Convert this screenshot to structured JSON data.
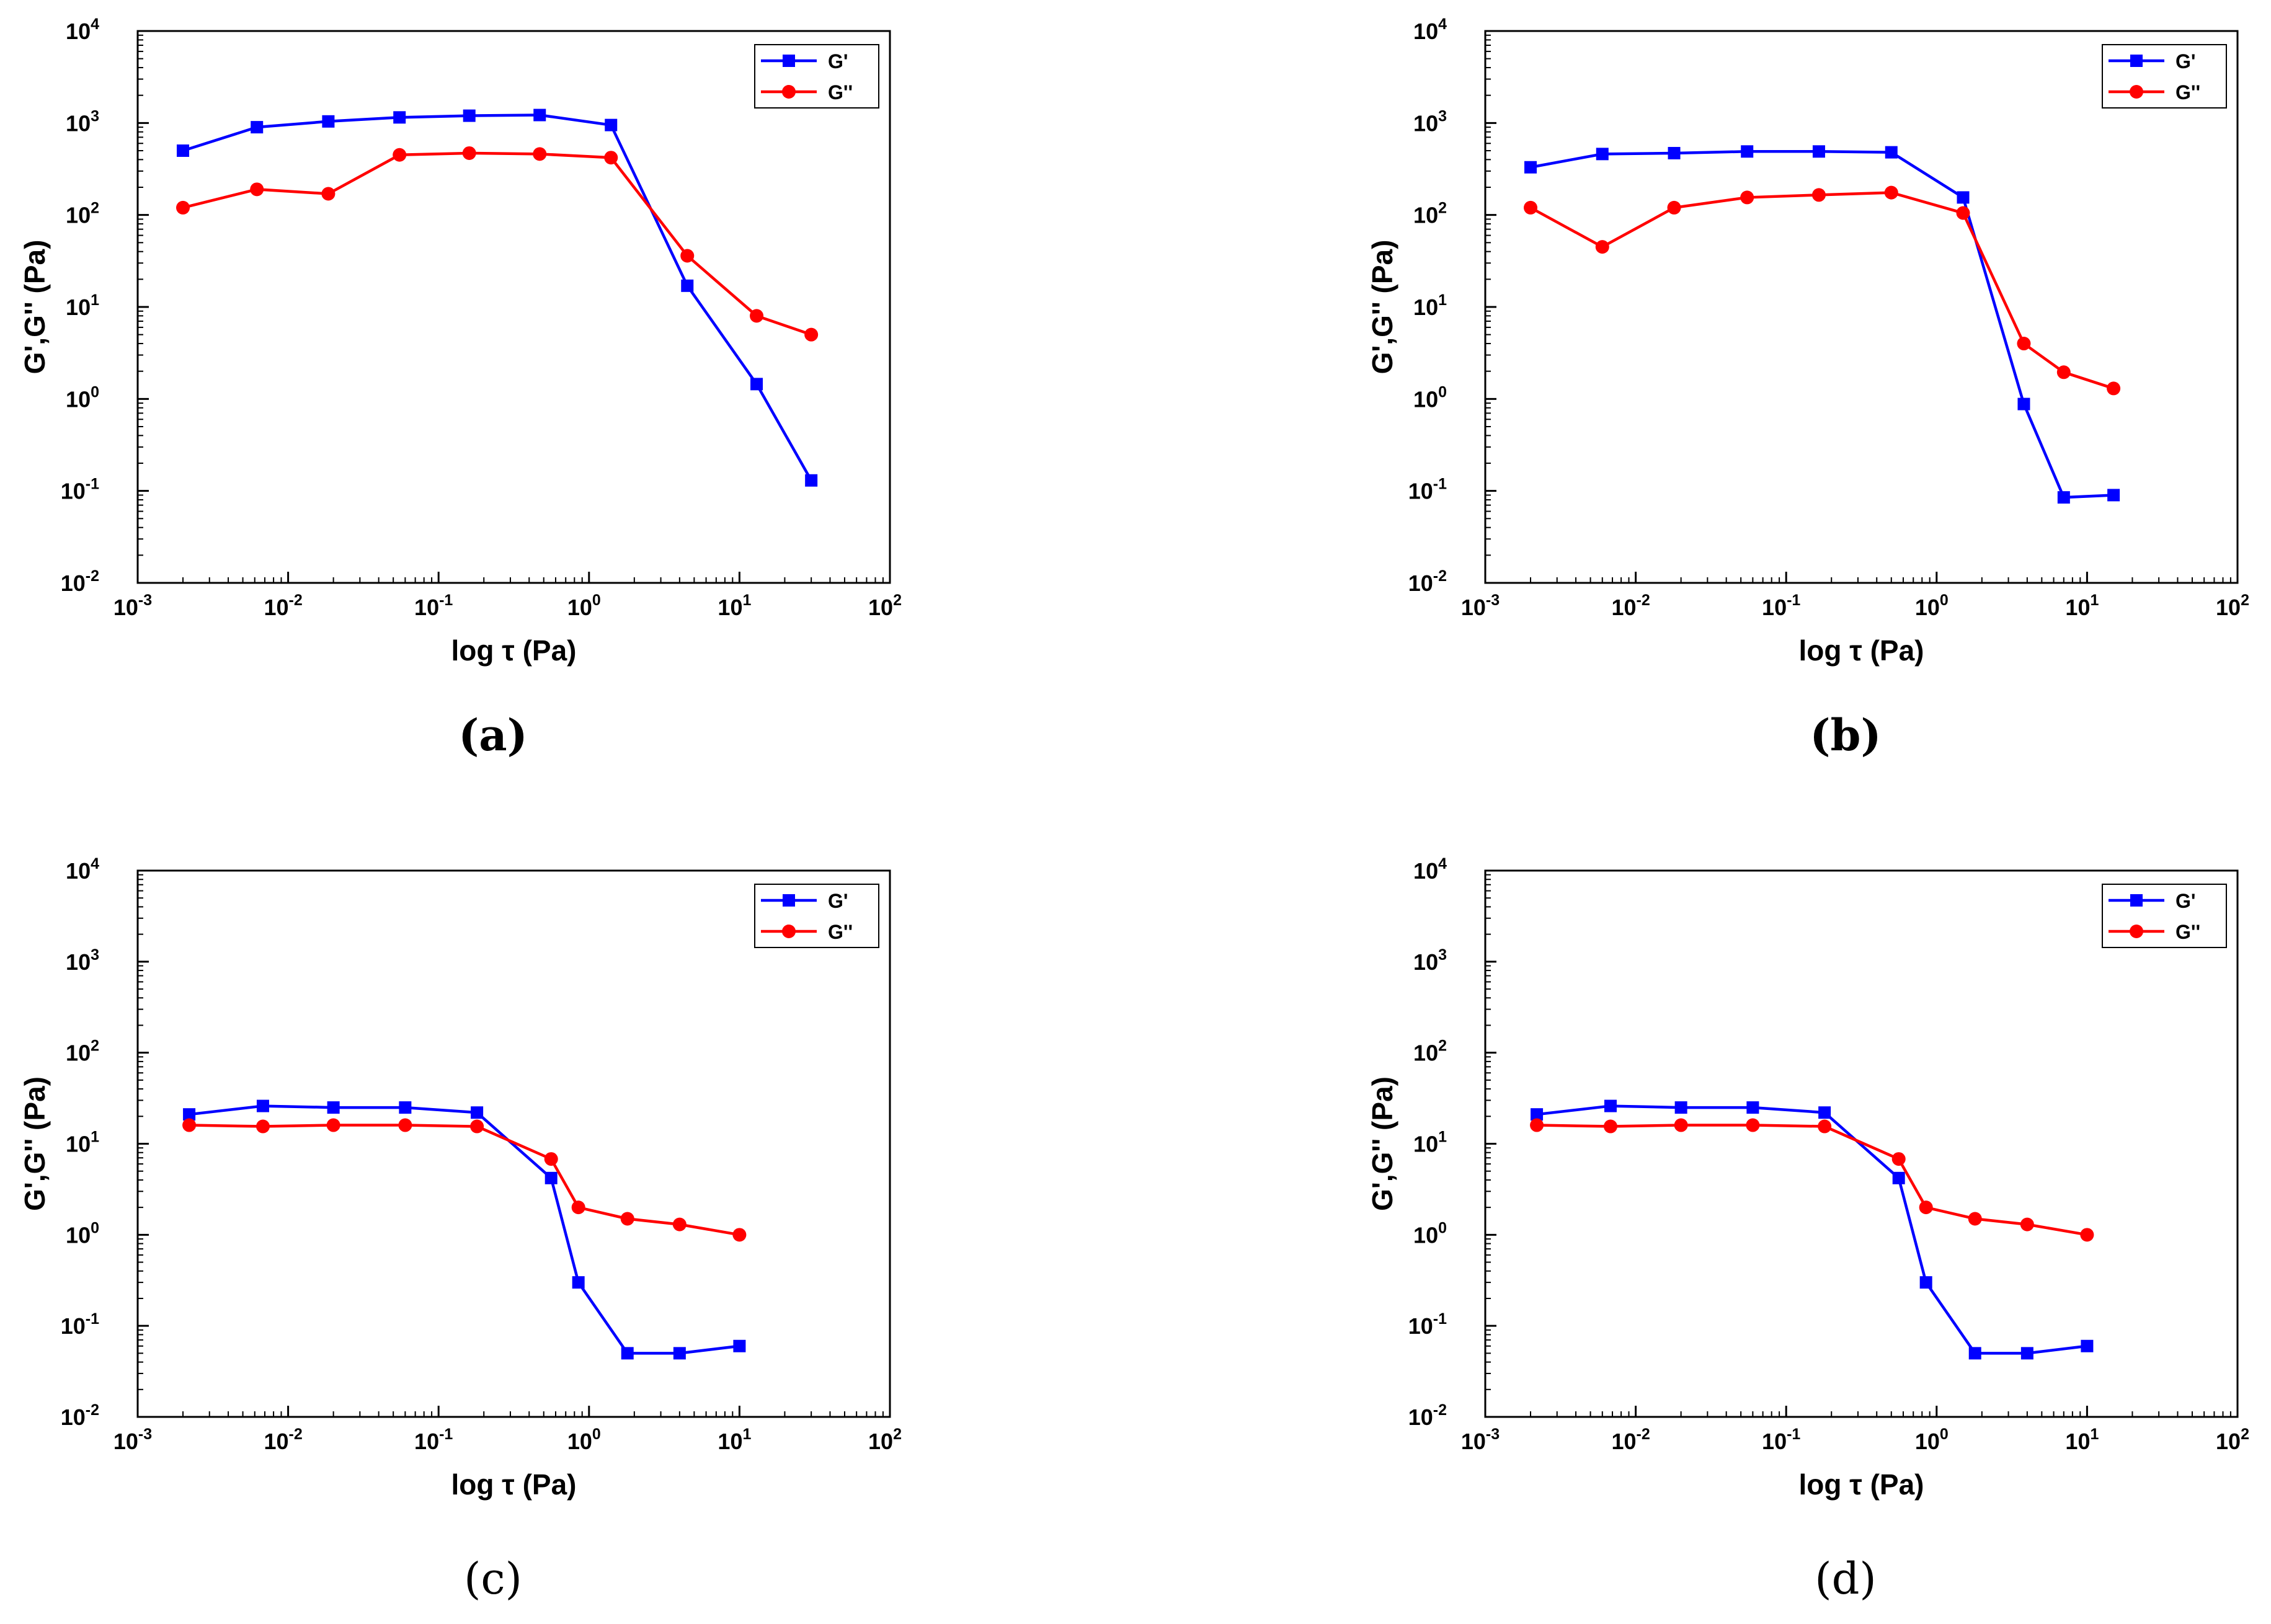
{
  "figure": {
    "panel_labels": [
      "(a)",
      "(b)",
      "(c)",
      "(d)"
    ]
  },
  "chart_data": [
    {
      "type": "line",
      "panel": "(a)",
      "xscale": "log",
      "yscale": "log",
      "xlabel": "log τ (Pa)",
      "ylabel": "G',G'' (Pa)",
      "xlim": [
        0.001,
        100
      ],
      "ylim": [
        0.01,
        10000
      ],
      "x_ticks": [
        {
          "base": "10",
          "exp": "-3"
        },
        {
          "base": "10",
          "exp": "-2"
        },
        {
          "base": "10",
          "exp": "-1"
        },
        {
          "base": "10",
          "exp": "0"
        },
        {
          "base": "10",
          "exp": "1"
        },
        {
          "base": "10",
          "exp": "2"
        }
      ],
      "y_ticks": [
        {
          "base": "10",
          "exp": "-2"
        },
        {
          "base": "10",
          "exp": "-1"
        },
        {
          "base": "10",
          "exp": "0"
        },
        {
          "base": "10",
          "exp": "1"
        },
        {
          "base": "10",
          "exp": "2"
        },
        {
          "base": "10",
          "exp": "3"
        },
        {
          "base": "10",
          "exp": "4"
        }
      ],
      "legend_position": "top-right",
      "series": [
        {
          "name": "G'",
          "color": "#0000ff",
          "marker": "square",
          "x": [
            0.002,
            0.0062,
            0.0185,
            0.055,
            0.16,
            0.47,
            1.4,
            4.5,
            13,
            30
          ],
          "y": [
            500,
            900,
            1040,
            1150,
            1200,
            1220,
            950,
            17,
            1.45,
            0.13
          ]
        },
        {
          "name": "G''",
          "color": "#ff0000",
          "marker": "circle",
          "x": [
            0.002,
            0.0062,
            0.0185,
            0.055,
            0.16,
            0.47,
            1.4,
            4.5,
            13,
            30
          ],
          "y": [
            120,
            190,
            170,
            450,
            470,
            460,
            420,
            36,
            8,
            5
          ]
        }
      ]
    },
    {
      "type": "line",
      "panel": "(b)",
      "xscale": "log",
      "yscale": "log",
      "xlabel": "log τ (Pa)",
      "ylabel": "G',G'' (Pa)",
      "xlim": [
        0.001,
        100
      ],
      "ylim": [
        0.01,
        10000
      ],
      "x_ticks": [
        {
          "base": "10",
          "exp": "-3"
        },
        {
          "base": "10",
          "exp": "-2"
        },
        {
          "base": "10",
          "exp": "-1"
        },
        {
          "base": "10",
          "exp": "0"
        },
        {
          "base": "10",
          "exp": "1"
        },
        {
          "base": "10",
          "exp": "2"
        }
      ],
      "y_ticks": [
        {
          "base": "10",
          "exp": "-2"
        },
        {
          "base": "10",
          "exp": "-1"
        },
        {
          "base": "10",
          "exp": "0"
        },
        {
          "base": "10",
          "exp": "1"
        },
        {
          "base": "10",
          "exp": "2"
        },
        {
          "base": "10",
          "exp": "3"
        },
        {
          "base": "10",
          "exp": "4"
        }
      ],
      "legend_position": "top-right",
      "series": [
        {
          "name": "G'",
          "color": "#0000ff",
          "marker": "square",
          "x": [
            0.002,
            0.006,
            0.018,
            0.055,
            0.165,
            0.5,
            1.5,
            3.8,
            7,
            15
          ],
          "y": [
            330,
            460,
            470,
            490,
            490,
            480,
            155,
            0.88,
            0.085,
            0.09
          ]
        },
        {
          "name": "G''",
          "color": "#ff0000",
          "marker": "circle",
          "x": [
            0.002,
            0.006,
            0.018,
            0.055,
            0.165,
            0.5,
            1.5,
            3.8,
            7,
            15
          ],
          "y": [
            120,
            45,
            120,
            155,
            165,
            175,
            105,
            4,
            1.95,
            1.3
          ]
        }
      ]
    },
    {
      "type": "line",
      "panel": "(c)",
      "xscale": "log",
      "yscale": "log",
      "xlabel": "log τ (Pa)",
      "ylabel": "G',G'' (Pa)",
      "xlim": [
        0.001,
        100
      ],
      "ylim": [
        0.01,
        10000
      ],
      "x_ticks": [
        {
          "base": "10",
          "exp": "-3"
        },
        {
          "base": "10",
          "exp": "-2"
        },
        {
          "base": "10",
          "exp": "-1"
        },
        {
          "base": "10",
          "exp": "0"
        },
        {
          "base": "10",
          "exp": "1"
        },
        {
          "base": "10",
          "exp": "2"
        }
      ],
      "y_ticks": [
        {
          "base": "10",
          "exp": "-2"
        },
        {
          "base": "10",
          "exp": "-1"
        },
        {
          "base": "10",
          "exp": "0"
        },
        {
          "base": "10",
          "exp": "1"
        },
        {
          "base": "10",
          "exp": "2"
        },
        {
          "base": "10",
          "exp": "3"
        },
        {
          "base": "10",
          "exp": "4"
        }
      ],
      "legend_position": "top-right",
      "series": [
        {
          "name": "G'",
          "color": "#0000ff",
          "marker": "square",
          "x": [
            0.0022,
            0.0068,
            0.02,
            0.06,
            0.18,
            0.56,
            0.85,
            1.8,
            4,
            10
          ],
          "y": [
            21,
            26,
            25,
            25,
            22,
            4.2,
            0.3,
            0.05,
            0.05,
            0.06
          ]
        },
        {
          "name": "G''",
          "color": "#ff0000",
          "marker": "circle",
          "x": [
            0.0022,
            0.0068,
            0.02,
            0.06,
            0.18,
            0.56,
            0.85,
            1.8,
            4,
            10
          ],
          "y": [
            16,
            15.5,
            16,
            16,
            15.5,
            6.8,
            2,
            1.5,
            1.3,
            1
          ]
        }
      ]
    },
    {
      "type": "line",
      "panel": "(d)",
      "xscale": "log",
      "yscale": "log",
      "xlabel": "log τ (Pa)",
      "ylabel": "G',G'' (Pa)",
      "xlim": [
        0.001,
        100
      ],
      "ylim": [
        0.01,
        10000
      ],
      "x_ticks": [
        {
          "base": "10",
          "exp": "-3"
        },
        {
          "base": "10",
          "exp": "-2"
        },
        {
          "base": "10",
          "exp": "-1"
        },
        {
          "base": "10",
          "exp": "0"
        },
        {
          "base": "10",
          "exp": "1"
        },
        {
          "base": "10",
          "exp": "2"
        }
      ],
      "y_ticks": [
        {
          "base": "10",
          "exp": "-2"
        },
        {
          "base": "10",
          "exp": "-1"
        },
        {
          "base": "10",
          "exp": "0"
        },
        {
          "base": "10",
          "exp": "1"
        },
        {
          "base": "10",
          "exp": "2"
        },
        {
          "base": "10",
          "exp": "3"
        },
        {
          "base": "10",
          "exp": "4"
        }
      ],
      "legend_position": "top-right",
      "series": [
        {
          "name": "G'",
          "color": "#0000ff",
          "marker": "square",
          "x": [
            0.0022,
            0.0068,
            0.02,
            0.06,
            0.18,
            0.56,
            0.85,
            1.8,
            4,
            10
          ],
          "y": [
            21,
            26,
            25,
            25,
            22,
            4.2,
            0.3,
            0.05,
            0.05,
            0.06
          ]
        },
        {
          "name": "G''",
          "color": "#ff0000",
          "marker": "circle",
          "x": [
            0.0022,
            0.0068,
            0.02,
            0.06,
            0.18,
            0.56,
            0.85,
            1.8,
            4,
            10
          ],
          "y": [
            16,
            15.5,
            16,
            16,
            15.5,
            6.8,
            2,
            1.5,
            1.3,
            1
          ]
        }
      ]
    }
  ]
}
